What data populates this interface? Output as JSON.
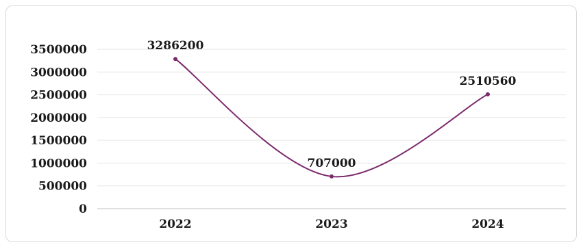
{
  "chart_data": {
    "type": "line",
    "title": "",
    "xlabel": "",
    "ylabel": "",
    "categories": [
      "2022",
      "2023",
      "2024"
    ],
    "series": [
      {
        "values": [
          3286200,
          707000,
          2510560
        ],
        "data_labels": [
          "3286200",
          "707000",
          "2510560"
        ]
      }
    ],
    "ylim": [
      0,
      3500000
    ],
    "yticks": [
      0,
      500000,
      1000000,
      1500000,
      2000000,
      2500000,
      3000000,
      3500000
    ],
    "ytick_labels": [
      "0",
      "500000",
      "1000000",
      "1500000",
      "2000000",
      "2500000",
      "3000000",
      "3500000"
    ],
    "smooth": true,
    "grid": true,
    "legend": "none",
    "colors": {
      "line": "#7b2a6b",
      "grid": "#e6e6e6",
      "axis": "#bfbfbf",
      "text": "#1a1a1a"
    }
  }
}
